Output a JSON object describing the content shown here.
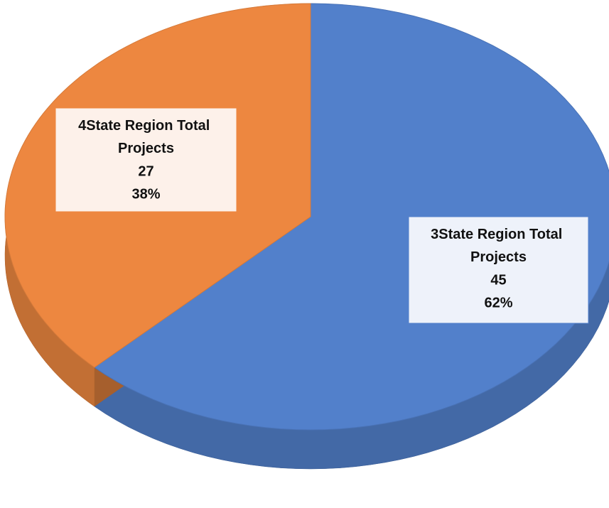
{
  "chart_data": {
    "type": "pie",
    "categories": [
      "3State Region Total Projects",
      "4State Region Total Projects"
    ],
    "values": [
      45,
      27
    ],
    "percent_labels": [
      "62%",
      "38%"
    ],
    "colors": [
      "#5280cb",
      "#ed8740"
    ]
  }
}
